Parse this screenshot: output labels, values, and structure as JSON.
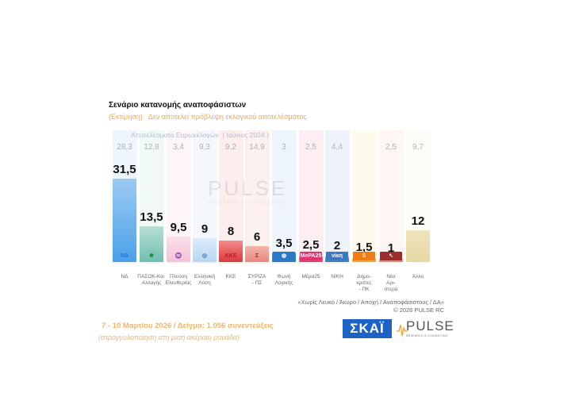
{
  "header": {
    "title": "Σενάριο κατανομής αναποφάσιστων",
    "subtitle": "(Εκτίμηση)   Δεν αποτελεί πρόβλεψη εκλογικού αποτελέσματος"
  },
  "previous_results_caption": "Αποτελέσματα Ευρωεκλογών  ( Ιούνιος 2024 )",
  "watermark": {
    "word": "PULSE",
    "sub": "RESEARCH & CONSULTING"
  },
  "chart_data": {
    "type": "bar",
    "title": "Σενάριο κατανομής αναποφάσιστων",
    "subtitle": "(Εκτίμηση) Δεν αποτελεί πρόβλεψη εκλογικού αποτελέσματος",
    "xlabel": "",
    "ylabel": "",
    "categories": [
      "ΝΔ",
      "ΠΑΣΟΚ-Κιν. Αλλαγής",
      "Πλεύση Ελευθερίας",
      "Ελληνική Λύση",
      "ΚΚΕ",
      "ΣΥΡΙΖΑ - ΠΣ",
      "Φωνή Λογικής",
      "Μέρα25",
      "ΝΙΚΗ",
      "Δημο-κράτες - ΠΚ",
      "Νέα Αρι-στερά",
      "Άλλο"
    ],
    "series": [
      {
        "name": "Σενάριο κατανομής αναποφάσιστων (Μάρτιος 2026)",
        "values": [
          31.5,
          13.5,
          9.5,
          9,
          8,
          6,
          3.5,
          2.5,
          2,
          1.5,
          1,
          12
        ]
      },
      {
        "name": "Αποτελέσματα Ευρωεκλογών (Ιούνιος 2024)",
        "values": [
          28.3,
          12.8,
          3.4,
          9.3,
          9.2,
          14.9,
          3,
          2.5,
          4.4,
          null,
          2.5,
          9.7
        ]
      }
    ],
    "value_labels": [
      "31,5",
      "13,5",
      "9,5",
      "9",
      "8",
      "6",
      "3,5",
      "2,5",
      "2",
      "1,5",
      "1",
      "12"
    ],
    "previous_labels": [
      "28,3",
      "12,8",
      "3,4",
      "9,3",
      "9,2",
      "14,9",
      "3",
      "2,5",
      "4,4",
      "",
      "2,5",
      "9,7"
    ],
    "ylim": [
      0,
      35
    ],
    "grid": false,
    "legend": "none"
  },
  "parties": [
    {
      "key": "nd",
      "label": "ΝΔ",
      "value": "31,5",
      "prev": "28,3",
      "num": 31.5,
      "color_top": "#9ccbf3",
      "color_bottom": "#4aa0e8",
      "col_bg": "#eef5fc",
      "logo_text": "ΝΔ",
      "logo_color": "#1976d2"
    },
    {
      "key": "pasok",
      "label": "ΠΑΣΟΚ-Κιν.\nΑλλαγής",
      "value": "13,5",
      "prev": "12,8",
      "num": 13.5,
      "color_top": "#b6dfd6",
      "color_bottom": "#6fbfae",
      "col_bg": "#f1f9f7",
      "logo_text": "✹",
      "logo_color": "#1e8a3c"
    },
    {
      "key": "plefsi",
      "label": "Πλεύση\nΕλευθερίας",
      "value": "9,5",
      "prev": "3,4",
      "num": 9.5,
      "color_top": "#fbe0ea",
      "color_bottom": "#f3c2d4",
      "col_bg": "#fdf5f8",
      "logo_text": "♒",
      "logo_color": "#9b6fbf"
    },
    {
      "key": "elliniki",
      "label": "Ελληνική\nΛύση",
      "value": "9",
      "prev": "9,3",
      "num": 9,
      "color_top": "#dcebfa",
      "color_bottom": "#b7d6f2",
      "col_bg": "#f4f8fd",
      "logo_text": "◎",
      "logo_color": "#2f6fb0"
    },
    {
      "key": "kke",
      "label": "ΚΚΕ",
      "value": "8",
      "prev": "9,2",
      "num": 8,
      "color_top": "#f28a8a",
      "color_bottom": "#d83b3b",
      "col_bg": "#fdeeee",
      "logo_text": "ΚΚΕ",
      "logo_color": "#c8102e"
    },
    {
      "key": "syriza",
      "label": "ΣΥΡΙΖΑ\n- ΠΣ",
      "value": "6",
      "prev": "14,9",
      "num": 6,
      "color_top": "#f4b4ad",
      "color_bottom": "#e9887d",
      "col_bg": "#fdf1f0",
      "logo_text": "Σ",
      "logo_color": "#b3272c"
    },
    {
      "key": "foni",
      "label": "Φωνή\nΛογικής",
      "value": "3,5",
      "prev": "3",
      "num": 3.5,
      "color_top": "#4d96d9",
      "color_bottom": "#2a78c8",
      "col_bg": "#eef4fb",
      "logo_text": "◍",
      "logo_color": "#2a78c8"
    },
    {
      "key": "mera25",
      "label": "Μέρα25",
      "value": "2,5",
      "prev": "2,5",
      "num": 2.5,
      "color_top": "#f8a6c0",
      "color_bottom": "#e2336e",
      "col_bg": "#fdeef3",
      "logo_text": "MePA25",
      "logo_color": "#e2336e"
    },
    {
      "key": "niki",
      "label": "ΝΙΚΗ",
      "value": "2",
      "prev": "4,4",
      "num": 2,
      "color_top": "#7aa7d8",
      "color_bottom": "#3c78bf",
      "col_bg": "#eef3fa",
      "logo_text": "νίκη",
      "logo_color": "#3c78bf"
    },
    {
      "key": "dimokrates",
      "label": "Δημο-\nκράτες\n- ΠΚ",
      "value": "1,5",
      "prev": "",
      "num": 1.5,
      "color_top": "#fbc35a",
      "color_bottom": "#f6a21e",
      "col_bg": "#fffaee",
      "logo_text": "S",
      "logo_color": "#f07a16"
    },
    {
      "key": "nea_aristera",
      "label": "Νέα\nΑρι-\nστερά",
      "value": "1",
      "prev": "2,5",
      "num": 1,
      "color_top": "#efa08e",
      "color_bottom": "#e0806c",
      "col_bg": "#fdf6f3",
      "logo_text": "↖",
      "logo_color": "#9a2d2d"
    },
    {
      "key": "allo",
      "label": "Άλλο",
      "value": "12",
      "prev": "9,7",
      "num": 12,
      "color_top": "#efe4bd",
      "color_bottom": "#e6d8a2",
      "col_bg": "#fefcf6",
      "logo_text": "",
      "logo_color": ""
    }
  ],
  "footnote": {
    "line1": "«Χωρίς Λευκό / Άκυρο / Αποχή / Αναποφάσιστους / ΔΑ»",
    "line2": "©  2026  PULSE RC"
  },
  "fieldwork": "7 - 10  Μαρτίου 2026  /  Δείγμα:  1.056 συνεντεύξεις",
  "rounding_note": "(στρογγυλοποίηση στη μισή ακέραιη μονάδα)",
  "logos": {
    "skai": "ΣΚΑΪ",
    "pulse_word": "PULSE",
    "pulse_sub": "RESEARCH & CONSULTING"
  },
  "colors": {
    "subtitle": "#f0a850",
    "fieldwork": "#f2b56a",
    "skai_blue": "#1d63c6",
    "prev_values": "#a9b1bd"
  }
}
